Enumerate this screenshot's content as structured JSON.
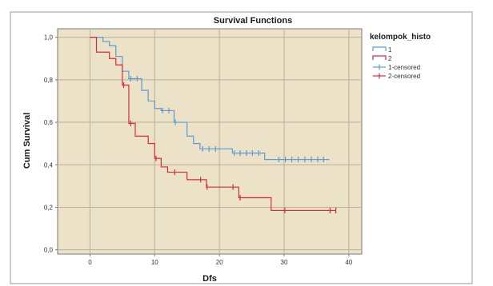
{
  "chart_data": {
    "type": "line",
    "subtype": "kaplan-meier-step",
    "title": "Survival Functions",
    "xlabel": "Dfs",
    "ylabel": "Cum Survival",
    "xlim": [
      -5,
      42
    ],
    "ylim": [
      -0.02,
      1.04
    ],
    "xticks": [
      0,
      10,
      20,
      30,
      40
    ],
    "xtick_labels": [
      "0",
      "10",
      "20",
      "30",
      "40"
    ],
    "yticks": [
      0.0,
      0.2,
      0.4,
      0.6,
      0.8,
      1.0
    ],
    "ytick_labels": [
      "0,0",
      "0,2",
      "0,4",
      "0,6",
      "0,8",
      "1,0"
    ],
    "grid": true,
    "plot_background": "#ece2c8",
    "legend": {
      "title": "kelompok_histo",
      "placement": "right",
      "entries": [
        {
          "label": "1",
          "kind": "line",
          "color": "#5b9bd5"
        },
        {
          "label": "2",
          "kind": "line",
          "color": "#d62b3f"
        },
        {
          "label": "1-censored",
          "kind": "censor",
          "color": "#5b9bd5"
        },
        {
          "label": "2-censored",
          "kind": "censor",
          "color": "#d62b3f"
        }
      ]
    },
    "series": [
      {
        "name": "1",
        "color": "#5b9bd5",
        "steps": [
          [
            0,
            1.0
          ],
          [
            2,
            0.98
          ],
          [
            3,
            0.96
          ],
          [
            4,
            0.91
          ],
          [
            5,
            0.84
          ],
          [
            6,
            0.805
          ],
          [
            8,
            0.75
          ],
          [
            9,
            0.7
          ],
          [
            10,
            0.665
          ],
          [
            11,
            0.655
          ],
          [
            13,
            0.6
          ],
          [
            15,
            0.535
          ],
          [
            16,
            0.5
          ],
          [
            17,
            0.475
          ],
          [
            22,
            0.455
          ],
          [
            27,
            0.425
          ],
          [
            37,
            0.425
          ]
        ],
        "censored": [
          [
            6.3,
            0.805
          ],
          [
            7.3,
            0.805
          ],
          [
            11.2,
            0.655
          ],
          [
            12.2,
            0.655
          ],
          [
            13.2,
            0.6
          ],
          [
            17.4,
            0.475
          ],
          [
            18.4,
            0.475
          ],
          [
            19.4,
            0.475
          ],
          [
            22.3,
            0.455
          ],
          [
            23.2,
            0.455
          ],
          [
            24.2,
            0.455
          ],
          [
            25.1,
            0.455
          ],
          [
            26.1,
            0.455
          ],
          [
            29.2,
            0.425
          ],
          [
            30.2,
            0.425
          ],
          [
            31.2,
            0.425
          ],
          [
            32.2,
            0.425
          ],
          [
            33.2,
            0.425
          ],
          [
            34.2,
            0.425
          ],
          [
            35.2,
            0.425
          ],
          [
            36.1,
            0.425
          ]
        ]
      },
      {
        "name": "2",
        "color": "#d62b3f",
        "steps": [
          [
            0,
            1.0
          ],
          [
            1,
            0.93
          ],
          [
            3,
            0.9
          ],
          [
            4,
            0.87
          ],
          [
            5,
            0.775
          ],
          [
            6,
            0.595
          ],
          [
            7,
            0.535
          ],
          [
            9,
            0.5
          ],
          [
            10,
            0.43
          ],
          [
            11,
            0.39
          ],
          [
            12,
            0.365
          ],
          [
            15,
            0.33
          ],
          [
            18,
            0.295
          ],
          [
            23,
            0.245
          ],
          [
            28,
            0.185
          ],
          [
            38,
            0.185
          ]
        ],
        "censored": [
          [
            5.2,
            0.775
          ],
          [
            6.3,
            0.595
          ],
          [
            10.2,
            0.43
          ],
          [
            13.1,
            0.365
          ],
          [
            17.1,
            0.33
          ],
          [
            18.1,
            0.295
          ],
          [
            22.1,
            0.295
          ],
          [
            23.2,
            0.245
          ],
          [
            30.1,
            0.185
          ],
          [
            37.1,
            0.185
          ],
          [
            38.0,
            0.185
          ]
        ]
      }
    ]
  }
}
